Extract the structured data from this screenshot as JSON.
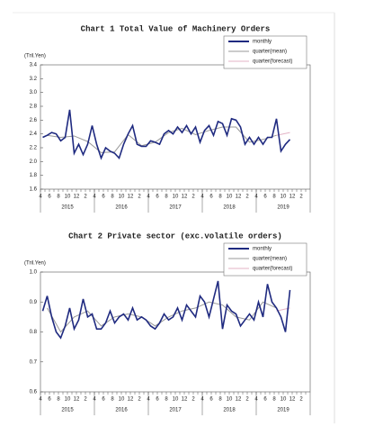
{
  "chart_data": [
    {
      "type": "line",
      "title": "Chart 1 Total Value of Machinery Orders",
      "y_unit": "(Tril.Yen)",
      "legend": "upper right",
      "categories": [
        "4",
        null,
        "6",
        null,
        "8",
        null,
        "10",
        null,
        "12",
        null,
        "2",
        null,
        "4",
        null,
        "6",
        null,
        "8",
        null,
        "10",
        null,
        "12",
        null,
        "2",
        null,
        "4",
        null,
        "6",
        null,
        "8",
        null,
        "10",
        null,
        "12",
        null,
        "2",
        null,
        "4",
        null,
        "6",
        null,
        "8",
        null,
        "10",
        null,
        "12",
        null,
        "2",
        null,
        "4",
        null,
        "6",
        null,
        "8",
        null,
        "10",
        null,
        "12",
        null,
        "2",
        null
      ],
      "year_labels": [
        "2015",
        "2016",
        "2017",
        "2018",
        "2019"
      ],
      "ylim": [
        1.6,
        3.4
      ],
      "yticks": [
        1.6,
        1.8,
        {
          "value": 2,
          "label": "2.0"
        },
        2.2,
        2.4,
        2.6,
        2.8,
        {
          "value": 3,
          "label": "3.0"
        },
        3.2,
        3.4
      ],
      "series": [
        {
          "name": "monthly",
          "color": "#1f2a80",
          "values": [
            2.35,
            2.38,
            2.42,
            2.4,
            2.3,
            2.35,
            2.75,
            2.12,
            2.25,
            2.1,
            2.25,
            2.52,
            2.25,
            2.05,
            2.2,
            2.15,
            2.12,
            2.05,
            2.25,
            2.4,
            2.52,
            2.25,
            2.22,
            2.22,
            2.3,
            2.28,
            2.25,
            2.4,
            2.45,
            2.4,
            2.5,
            2.42,
            2.52,
            2.4,
            2.5,
            2.28,
            2.45,
            2.52,
            2.38,
            2.58,
            2.55,
            2.38,
            2.62,
            2.6,
            2.5,
            2.25,
            2.35,
            2.25,
            2.35,
            2.25,
            2.35,
            2.35,
            2.62,
            2.15,
            2.25,
            2.32,
            null,
            null,
            null,
            null
          ]
        },
        {
          "name": "quarter(mean)",
          "color": "#9a9a9a",
          "x": [
            1,
            4,
            7,
            10,
            13,
            16,
            19,
            22,
            25,
            28,
            31,
            34,
            37,
            40,
            43,
            46,
            49,
            52
          ],
          "values": [
            2.38,
            2.35,
            2.37,
            2.29,
            2.13,
            2.14,
            2.39,
            2.23,
            2.28,
            2.42,
            2.48,
            2.39,
            2.45,
            2.5,
            2.5,
            2.28,
            2.32,
            2.38
          ]
        },
        {
          "name": "quarter(forecast)",
          "color": "#e3b3c6",
          "x": [
            52,
            55
          ],
          "values": [
            2.38,
            2.42
          ]
        }
      ]
    },
    {
      "type": "line",
      "title": "Chart 2 Private sector (exc.volatile orders)",
      "y_unit": "(Tril.Yen)",
      "legend": "upper right",
      "categories": [
        "4",
        null,
        "6",
        null,
        "8",
        null,
        "10",
        null,
        "12",
        null,
        "2",
        null,
        "4",
        null,
        "6",
        null,
        "8",
        null,
        "10",
        null,
        "12",
        null,
        "2",
        null,
        "4",
        null,
        "6",
        null,
        "8",
        null,
        "10",
        null,
        "12",
        null,
        "2",
        null,
        "4",
        null,
        "6",
        null,
        "8",
        null,
        "10",
        null,
        "12",
        null,
        "2",
        null,
        "4",
        null,
        "6",
        null,
        "8",
        null,
        "10",
        null,
        "12",
        null,
        "2",
        null
      ],
      "year_labels": [
        "2015",
        "2016",
        "2017",
        "2018",
        "2019"
      ],
      "ylim": [
        0.6,
        1.0
      ],
      "yticks": [
        0.6,
        0.7,
        0.8,
        0.9,
        {
          "value": 1,
          "label": "1.0"
        }
      ],
      "series": [
        {
          "name": "monthly",
          "color": "#1f2a80",
          "values": [
            0.87,
            0.92,
            0.85,
            0.8,
            0.78,
            0.82,
            0.88,
            0.81,
            0.84,
            0.91,
            0.85,
            0.86,
            0.81,
            0.81,
            0.83,
            0.87,
            0.83,
            0.85,
            0.86,
            0.84,
            0.88,
            0.84,
            0.85,
            0.84,
            0.82,
            0.81,
            0.83,
            0.86,
            0.84,
            0.85,
            0.88,
            0.84,
            0.89,
            0.87,
            0.85,
            0.92,
            0.9,
            0.85,
            0.91,
            0.97,
            0.81,
            0.89,
            0.87,
            0.86,
            0.82,
            0.84,
            0.86,
            0.84,
            0.9,
            0.85,
            0.96,
            0.9,
            0.88,
            0.85,
            0.8,
            0.94,
            null,
            null,
            null,
            null
          ]
        },
        {
          "name": "quarter(mean)",
          "color": "#9a9a9a",
          "x": [
            1,
            4,
            7,
            10,
            13,
            16,
            19,
            22,
            25,
            28,
            31,
            34,
            37,
            40,
            43,
            46,
            49,
            52
          ],
          "values": [
            0.88,
            0.8,
            0.85,
            0.87,
            0.82,
            0.85,
            0.86,
            0.85,
            0.82,
            0.85,
            0.87,
            0.88,
            0.9,
            0.89,
            0.85,
            0.84,
            0.9,
            0.88
          ]
        },
        {
          "name": "quarter(forecast)",
          "color": "#e3b3c6",
          "x": [
            52,
            55
          ],
          "values": [
            0.87,
            0.88
          ]
        }
      ]
    }
  ]
}
